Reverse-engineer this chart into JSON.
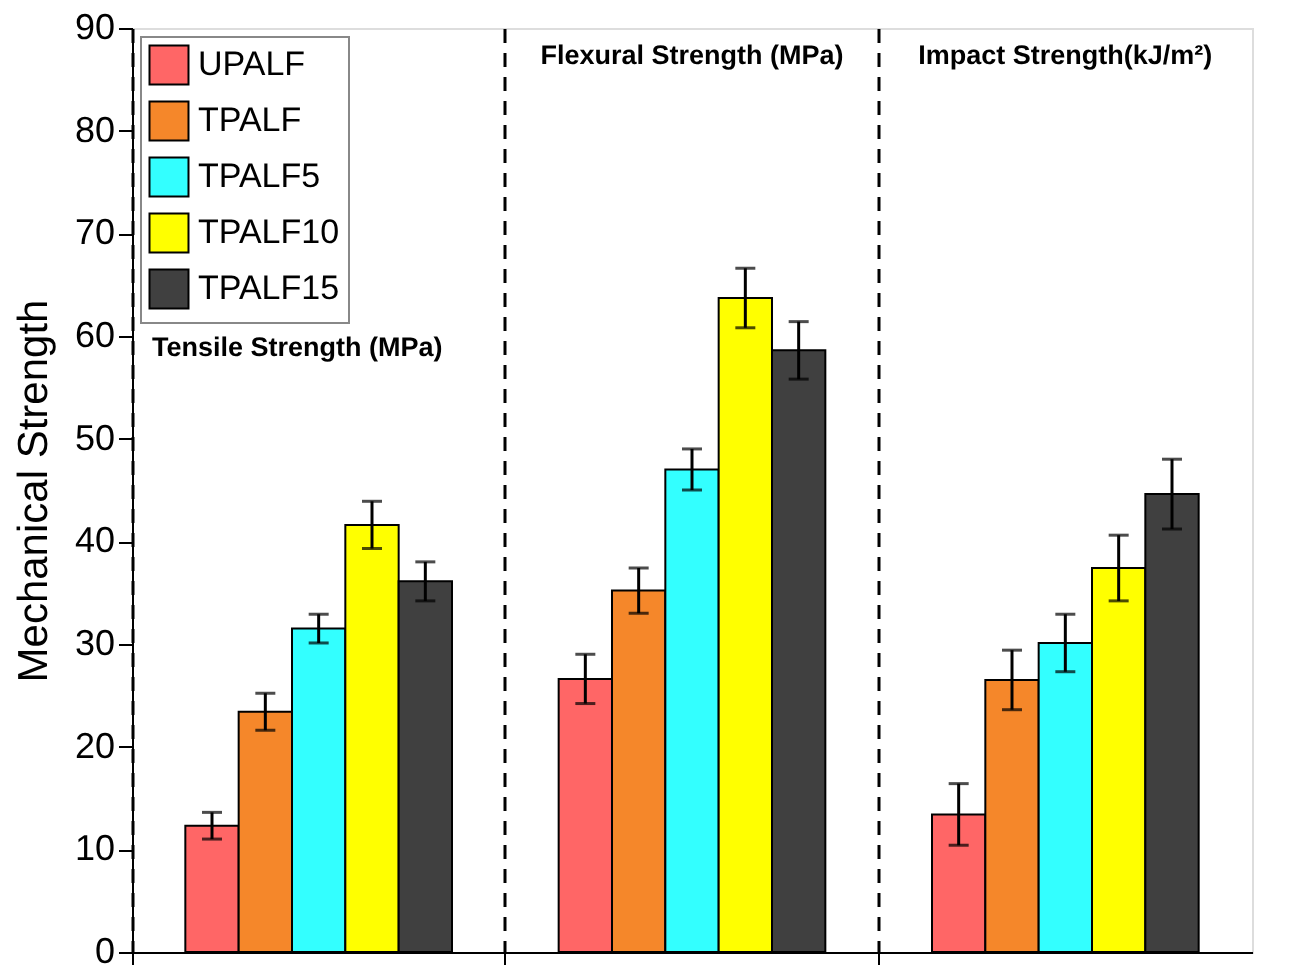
{
  "chart_data": {
    "type": "bar",
    "ylabel": "Mechanical Strength",
    "categories": [
      null,
      null,
      null
    ],
    "ylim": [
      0,
      90
    ],
    "yticks": [
      0,
      10,
      20,
      30,
      40,
      50,
      60,
      70,
      80,
      90
    ],
    "grid": "x",
    "line_style": "dashed",
    "legend": "top left",
    "annotations": [
      "Tensile Strength (MPa)",
      "Flexural Strength (MPa)",
      "Impact Strength(kJ/m²)"
    ],
    "series": [
      {
        "name": "UPALF",
        "color": "#ff6666",
        "values": [
          12.3,
          26.6,
          13.4
        ],
        "errors": [
          1.3,
          2.4,
          3.0
        ]
      },
      {
        "name": "TPALF",
        "color": "#f5872a",
        "values": [
          23.4,
          35.2,
          26.5
        ],
        "errors": [
          1.8,
          2.2,
          2.9
        ]
      },
      {
        "name": "TPALF5",
        "color": "#33ffff",
        "values": [
          31.5,
          47.0,
          30.1
        ],
        "errors": [
          1.4,
          2.0,
          2.8
        ]
      },
      {
        "name": "TPALF10",
        "color": "#ffff00",
        "values": [
          41.6,
          63.7,
          37.4
        ],
        "errors": [
          2.3,
          2.9,
          3.2
        ]
      },
      {
        "name": "TPALF15",
        "color": "#404040",
        "values": [
          36.1,
          58.6,
          44.6
        ],
        "errors": [
          1.9,
          2.8,
          3.4
        ]
      }
    ]
  }
}
